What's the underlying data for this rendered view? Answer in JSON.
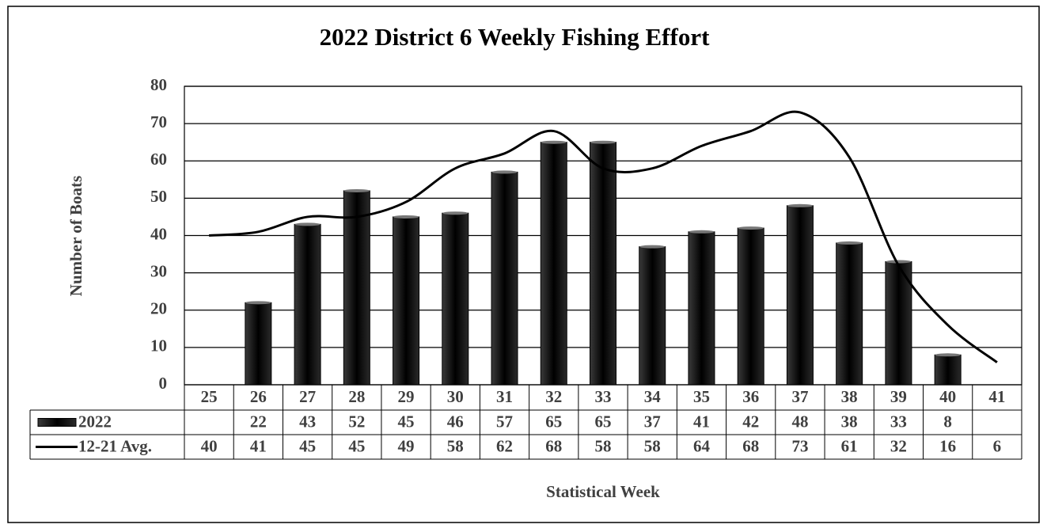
{
  "chart_data": {
    "type": "bar-line",
    "title": "2022 District 6 Weekly Fishing Effort",
    "y_label": "Number of Boats",
    "x_label": "Statistical Week",
    "categories": [
      "25",
      "26",
      "27",
      "28",
      "29",
      "30",
      "31",
      "32",
      "33",
      "34",
      "35",
      "36",
      "37",
      "38",
      "39",
      "40",
      "41"
    ],
    "series": [
      {
        "name": "2022",
        "type": "bar",
        "color": "#111111",
        "values": [
          null,
          22,
          43,
          52,
          45,
          46,
          57,
          65,
          65,
          37,
          41,
          42,
          48,
          38,
          33,
          8,
          null
        ]
      },
      {
        "name": "12-21 Avg.",
        "type": "line",
        "color": "#000000",
        "values": [
          40,
          41,
          45,
          45,
          49,
          58,
          62,
          68,
          58,
          58,
          64,
          68,
          73,
          61,
          32,
          16,
          6
        ]
      }
    ],
    "ylim": [
      0,
      80
    ],
    "yticks": [
      0,
      10,
      20,
      30,
      40,
      50,
      60,
      70,
      80
    ],
    "grid": true
  }
}
